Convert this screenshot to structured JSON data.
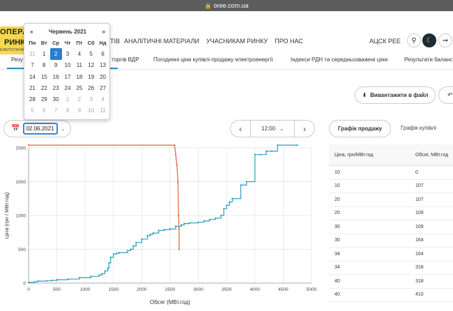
{
  "browser": {
    "url": "oree.com.ua"
  },
  "logo": {
    "line1": "ОПЕРАТ",
    "line2": "РИНК",
    "line3": "ЕНЕРГЕТИЧНИЙ"
  },
  "nav": {
    "first_partial": "ТІВ",
    "items": [
      "АНАЛІТИЧНІ МАТЕРІАЛИ",
      "УЧАСНИКАМ РИНКУ",
      "ПРО НАС"
    ],
    "acsk": "АЦСК РЕЕ"
  },
  "tabs": [
    {
      "label": "Резу"
    },
    {
      "label": "торгів ВДР"
    },
    {
      "label": "Погодинні ціни купівлі-продажу електроенергії"
    },
    {
      "label": "Індекси РДН та середньозважені ціни"
    },
    {
      "label": "Результати баланс"
    }
  ],
  "download_label": "Вивантажити в файл",
  "date_value": "02.06.2021",
  "time_value": "12:00",
  "sale_button": "Графік продажу",
  "buy_button": "Графік купівлі",
  "datepicker": {
    "month_title": "Червень 2021",
    "prev": "«",
    "next": "»",
    "weekdays": [
      "Пн",
      "Вт",
      "Ср",
      "Чт",
      "Пт",
      "Сб",
      "Нд"
    ],
    "days": [
      [
        "31",
        "1",
        "2",
        "3",
        "4",
        "5",
        "6"
      ],
      [
        "7",
        "8",
        "9",
        "10",
        "11",
        "12",
        "13"
      ],
      [
        "14",
        "15",
        "16",
        "17",
        "18",
        "19",
        "20"
      ],
      [
        "21",
        "22",
        "23",
        "24",
        "25",
        "26",
        "27"
      ],
      [
        "28",
        "29",
        "30",
        "1",
        "2",
        "3",
        "4"
      ],
      [
        "5",
        "6",
        "7",
        "8",
        "9",
        "10",
        "11"
      ]
    ],
    "selected": "2"
  },
  "table": {
    "headers": [
      "Ціна, грн/МВт.год",
      "Обсяг, МВт.год"
    ],
    "rows": [
      [
        "10",
        "0"
      ],
      [
        "10",
        "107"
      ],
      [
        "20",
        "107"
      ],
      [
        "20",
        "109"
      ],
      [
        "30",
        "109"
      ],
      [
        "30",
        "164"
      ],
      [
        "34",
        "164"
      ],
      [
        "34",
        "318"
      ],
      [
        "40",
        "318"
      ],
      [
        "40",
        "410"
      ]
    ]
  },
  "chart_data": {
    "type": "line",
    "xlabel": "Обсяг (МВт.год)",
    "ylabel": "Ціна (грн / МВт.год)",
    "xlim": [
      0,
      5000
    ],
    "ylim": [
      0,
      2000
    ],
    "xticks": [
      "0",
      "500",
      "1000",
      "1500",
      "2000",
      "2500",
      "3000",
      "3500",
      "4000",
      "4500",
      "5000"
    ],
    "yticks": [
      "0",
      "500",
      "1000",
      "1500",
      "2000"
    ],
    "grid": true,
    "colors": {
      "sale": "#2a9fc0",
      "buy": "#d9673a"
    },
    "series": [
      {
        "key": "sale",
        "x": [
          0,
          107,
          164,
          318,
          410,
          500,
          700,
          900,
          1100,
          1250,
          1300,
          1350,
          1400,
          1420,
          1450,
          1500,
          1550,
          1600,
          1750,
          1800,
          1850,
          1900,
          2000,
          2100,
          2150,
          2200,
          2300,
          2400,
          2500,
          2600,
          2700,
          2750,
          2850,
          3000,
          3100,
          3200,
          3300,
          3400,
          3450,
          3500,
          3550,
          3600,
          3750,
          3850,
          4000,
          4100,
          4200,
          4300,
          4400,
          4750
        ],
        "y": [
          10,
          20,
          30,
          34,
          40,
          50,
          60,
          80,
          100,
          120,
          140,
          180,
          220,
          300,
          380,
          430,
          440,
          450,
          480,
          500,
          550,
          600,
          650,
          700,
          720,
          740,
          780,
          790,
          800,
          840,
          860,
          880,
          890,
          900,
          920,
          940,
          960,
          1000,
          1100,
          1150,
          1200,
          1250,
          1450,
          1500,
          1900,
          1900,
          1950,
          1950,
          2040,
          2040
        ]
      },
      {
        "key": "buy",
        "x": [
          0,
          2580,
          2600,
          2620,
          2640,
          2650,
          2660,
          2660
        ],
        "y": [
          2040,
          2040,
          1900,
          1750,
          1500,
          1000,
          800,
          500
        ]
      }
    ]
  }
}
